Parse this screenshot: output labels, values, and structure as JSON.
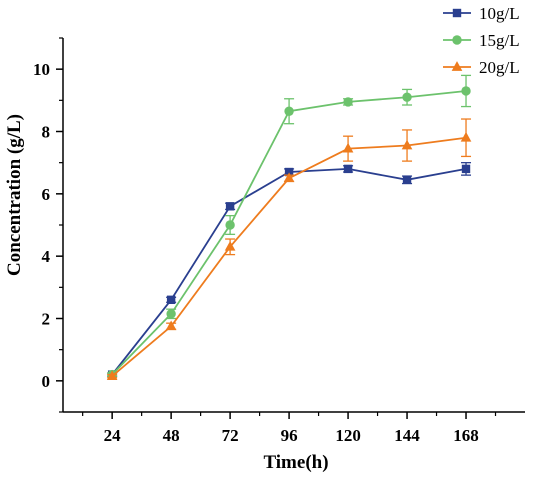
{
  "chart_data": {
    "type": "line",
    "title": "",
    "xlabel": "Time(h)",
    "ylabel": "Concentration (g/L)",
    "x": [
      24,
      48,
      72,
      96,
      120,
      144,
      168
    ],
    "x_ticks": [
      "24",
      "48",
      "72",
      "96",
      "120",
      "144",
      "168"
    ],
    "xlim": [
      4,
      192
    ],
    "y_ticks": [
      "0",
      "2",
      "4",
      "6",
      "8",
      "10"
    ],
    "ylim": [
      -1,
      11
    ],
    "grid": false,
    "legend": "top-right",
    "series": [
      {
        "name": "10g/L",
        "color": "#2a3f8f",
        "marker": "square",
        "values": [
          0.2,
          2.6,
          5.6,
          6.7,
          6.8,
          6.45,
          6.8
        ],
        "errors": [
          0.05,
          0.08,
          0.1,
          0.1,
          0.1,
          0.12,
          0.2
        ]
      },
      {
        "name": "15g/L",
        "color": "#6cc26c",
        "marker": "circle",
        "values": [
          0.2,
          2.15,
          5.0,
          8.65,
          8.95,
          9.1,
          9.3
        ],
        "errors": [
          0.05,
          0.15,
          0.3,
          0.4,
          0.1,
          0.25,
          0.5
        ]
      },
      {
        "name": "20g/L",
        "color": "#ee7c1e",
        "marker": "triangle",
        "values": [
          0.15,
          1.75,
          4.3,
          6.5,
          7.45,
          7.55,
          7.8
        ],
        "errors": [
          0.05,
          0.1,
          0.25,
          0.1,
          0.4,
          0.5,
          0.6
        ]
      }
    ]
  }
}
